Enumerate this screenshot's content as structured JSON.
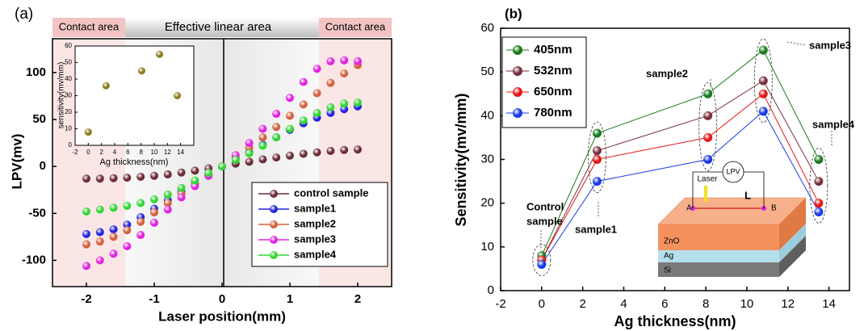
{
  "chart_data": [
    {
      "type": "scatter",
      "panel_label": "(a)",
      "header": [
        "Contact area",
        "Effective linear area",
        "Contact area"
      ],
      "xlabel": "Laser position(mm)",
      "ylabel": "LPV(mv)",
      "xlim": [
        -2.5,
        2.5
      ],
      "ylim": [
        -128,
        136
      ],
      "xticks": [
        -2,
        -1,
        0,
        1,
        2
      ],
      "yticks": [
        -100,
        -50,
        0,
        50,
        100
      ],
      "x": [
        -2.0,
        -1.8,
        -1.6,
        -1.4,
        -1.2,
        -1.0,
        -0.8,
        -0.6,
        -0.4,
        -0.2,
        0.0,
        0.2,
        0.4,
        0.6,
        0.8,
        1.0,
        1.2,
        1.4,
        1.6,
        1.8,
        2.0
      ],
      "series": [
        {
          "name": "control sample",
          "color": "#6b2c36",
          "values": [
            -13,
            -13,
            -12.5,
            -12,
            -11,
            -10,
            -8.5,
            -6.5,
            -4.5,
            -2,
            0,
            3,
            5,
            7.5,
            9.5,
            11.5,
            13.5,
            15,
            16.5,
            17.5,
            18
          ]
        },
        {
          "name": "sample1",
          "color": "#2323e0",
          "values": [
            -72,
            -70,
            -67,
            -62,
            -54,
            -45,
            -36,
            -27,
            -18,
            -9,
            0,
            8,
            15,
            23,
            31,
            39,
            46,
            52,
            57,
            61,
            64
          ]
        },
        {
          "name": "sample2",
          "color": "#d2623c",
          "values": [
            -83,
            -80,
            -75,
            -68,
            -59,
            -49,
            -39,
            -29,
            -19,
            -9,
            0,
            10,
            20,
            31,
            42,
            54,
            66,
            78,
            89,
            99,
            108
          ]
        },
        {
          "name": "sample3",
          "color": "#e022e0",
          "values": [
            -106,
            -100,
            -93,
            -85,
            -73,
            -60,
            -46,
            -33,
            -21,
            -10,
            0,
            12,
            25,
            40,
            56,
            73,
            90,
            104,
            112,
            113,
            112
          ]
        },
        {
          "name": "sample4",
          "color": "#33d633",
          "values": [
            -48,
            -46,
            -44,
            -42,
            -39,
            -35,
            -30,
            -23,
            -15,
            -7,
            0,
            7,
            14,
            22,
            31,
            40,
            49,
            57,
            63,
            67,
            68
          ]
        }
      ],
      "inset": {
        "type": "scatter",
        "xlabel": "Ag thickness(nm)",
        "ylabel": "sensitivity(mv/mm)",
        "xlim": [
          -2,
          16
        ],
        "ylim": [
          0,
          60
        ],
        "xticks": [
          -2,
          0,
          2,
          4,
          6,
          8,
          10,
          12,
          14
        ],
        "yticks": [
          0,
          10,
          20,
          30,
          40,
          50,
          60
        ],
        "x": [
          0,
          2.7,
          8.1,
          10.8,
          13.5
        ],
        "values": [
          8,
          36,
          45,
          55,
          30
        ],
        "color": "#8a7a1e"
      }
    },
    {
      "type": "line",
      "panel_label": "(b)",
      "xlabel": "Ag thickness(nm)",
      "ylabel": "Sensitivity(mv/mm)",
      "xlim": [
        -2,
        15
      ],
      "ylim": [
        0,
        60
      ],
      "xticks": [
        -2,
        0,
        2,
        4,
        6,
        8,
        10,
        12,
        14
      ],
      "yticks": [
        0,
        10,
        20,
        30,
        40,
        50,
        60
      ],
      "x": [
        0,
        2.7,
        8.1,
        10.8,
        13.5
      ],
      "series": [
        {
          "name": "405nm",
          "color": "#1a7a1a",
          "values": [
            8,
            36,
            45,
            55,
            30
          ]
        },
        {
          "name": "532nm",
          "color": "#7a3040",
          "values": [
            7,
            32,
            40,
            48,
            25
          ]
        },
        {
          "name": "650nm",
          "color": "#e41818",
          "values": [
            7,
            30,
            35,
            45,
            20
          ]
        },
        {
          "name": "780nm",
          "color": "#1a3ae4",
          "values": [
            6,
            25,
            30,
            41,
            18
          ]
        }
      ],
      "annotations": [
        "Control",
        "sample",
        "sample1",
        "sample2",
        "sample3",
        "sample4"
      ],
      "inset_labels": [
        "Laser",
        "LPV",
        "L",
        "A",
        "B",
        "ZnO",
        "Ag",
        "Si"
      ]
    }
  ]
}
